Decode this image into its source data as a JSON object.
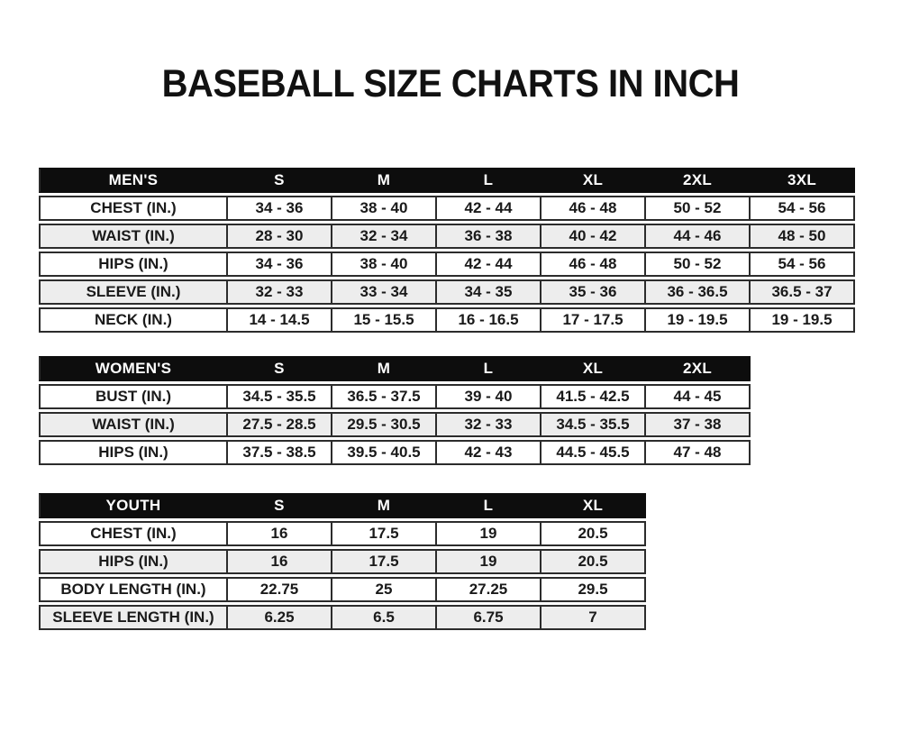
{
  "page_title": "BASEBALL SIZE CHARTS IN INCH",
  "colors": {
    "header_bg": "#0d0d0d",
    "header_text": "#ffffff",
    "border": "#2c2c2c",
    "row_stripe": "#ededed",
    "text": "#1a1a1a",
    "background": "#ffffff"
  },
  "chart_data": [
    {
      "type": "table",
      "title": "MEN'S",
      "columns": [
        "MEN'S",
        "S",
        "M",
        "L",
        "XL",
        "2XL",
        "3XL"
      ],
      "rows": [
        [
          "CHEST (IN.)",
          "34 - 36",
          "38 - 40",
          "42 - 44",
          "46 - 48",
          "50 - 52",
          "54 - 56"
        ],
        [
          "WAIST (IN.)",
          "28 - 30",
          "32 - 34",
          "36 - 38",
          "40 - 42",
          "44 - 46",
          "48 - 50"
        ],
        [
          "HIPS (IN.)",
          "34 - 36",
          "38 - 40",
          "42 - 44",
          "46 - 48",
          "50 - 52",
          "54 - 56"
        ],
        [
          "SLEEVE (IN.)",
          "32 - 33",
          "33 - 34",
          "34 - 35",
          "35 - 36",
          "36 - 36.5",
          "36.5 - 37"
        ],
        [
          "NECK (IN.)",
          "14 - 14.5",
          "15 - 15.5",
          "16 - 16.5",
          "17 - 17.5",
          "19 - 19.5",
          "19 - 19.5"
        ]
      ]
    },
    {
      "type": "table",
      "title": "WOMEN'S",
      "columns": [
        "WOMEN'S",
        "S",
        "M",
        "L",
        "XL",
        "2XL"
      ],
      "rows": [
        [
          "BUST (IN.)",
          "34.5 - 35.5",
          "36.5 - 37.5",
          "39 - 40",
          "41.5 - 42.5",
          "44 - 45"
        ],
        [
          "WAIST (IN.)",
          "27.5 - 28.5",
          "29.5 - 30.5",
          "32 - 33",
          "34.5 - 35.5",
          "37 - 38"
        ],
        [
          "HIPS (IN.)",
          "37.5 - 38.5",
          "39.5 - 40.5",
          "42 - 43",
          "44.5 - 45.5",
          "47 - 48"
        ]
      ]
    },
    {
      "type": "table",
      "title": "YOUTH",
      "columns": [
        "YOUTH",
        "S",
        "M",
        "L",
        "XL"
      ],
      "rows": [
        [
          "CHEST (IN.)",
          "16",
          "17.5",
          "19",
          "20.5"
        ],
        [
          "HIPS (IN.)",
          "16",
          "17.5",
          "19",
          "20.5"
        ],
        [
          "BODY LENGTH (IN.)",
          "22.75",
          "25",
          "27.25",
          "29.5"
        ],
        [
          "SLEEVE LENGTH (IN.)",
          "6.25",
          "6.5",
          "6.75",
          "7"
        ]
      ]
    }
  ]
}
